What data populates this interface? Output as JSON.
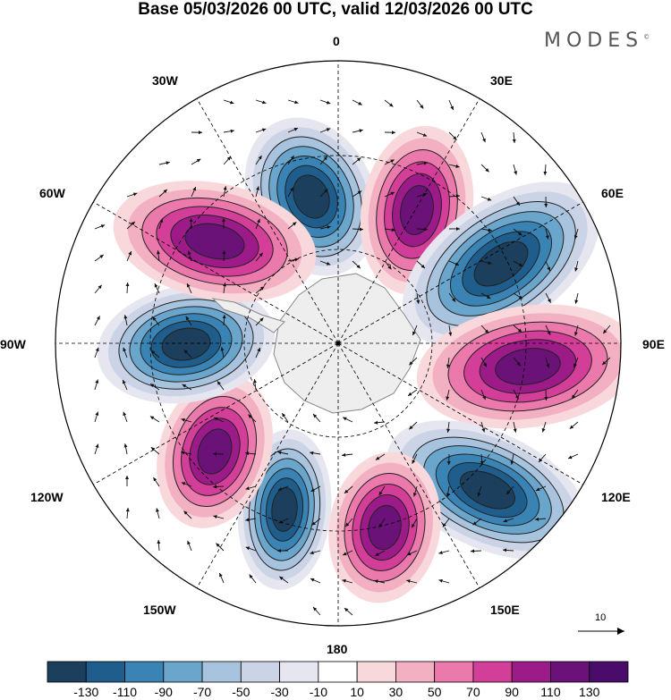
{
  "title": "Base 05/03/2026 00 UTC, valid 12/03/2026 00 UTC",
  "logo": "MODES",
  "logo_mark": "©",
  "longitude_labels": {
    "lon_0": "0",
    "lon_30e": "30E",
    "lon_60e": "60E",
    "lon_90e": "90E",
    "lon_120e": "120E",
    "lon_150e": "150E",
    "lon_180": "180",
    "lon_150w": "150W",
    "lon_120w": "120W",
    "lon_90w": "90W",
    "lon_60w": "60W",
    "lon_30w": "30W"
  },
  "vector_reference": "10",
  "colorbar": {
    "labels": [
      "-130",
      "-110",
      "-90",
      "-70",
      "-50",
      "-30",
      "-10",
      "10",
      "30",
      "50",
      "70",
      "90",
      "110",
      "130"
    ],
    "colors": [
      "#1b3f5c",
      "#1f5e8c",
      "#3a83b5",
      "#6aa5cc",
      "#a7c3dd",
      "#cbd3e6",
      "#e6e6f0",
      "#ffffff",
      "#f9d8dc",
      "#f4b0c3",
      "#ec79ac",
      "#d33e98",
      "#9c1b89",
      "#6a1278",
      "#4a0c6b"
    ]
  }
}
